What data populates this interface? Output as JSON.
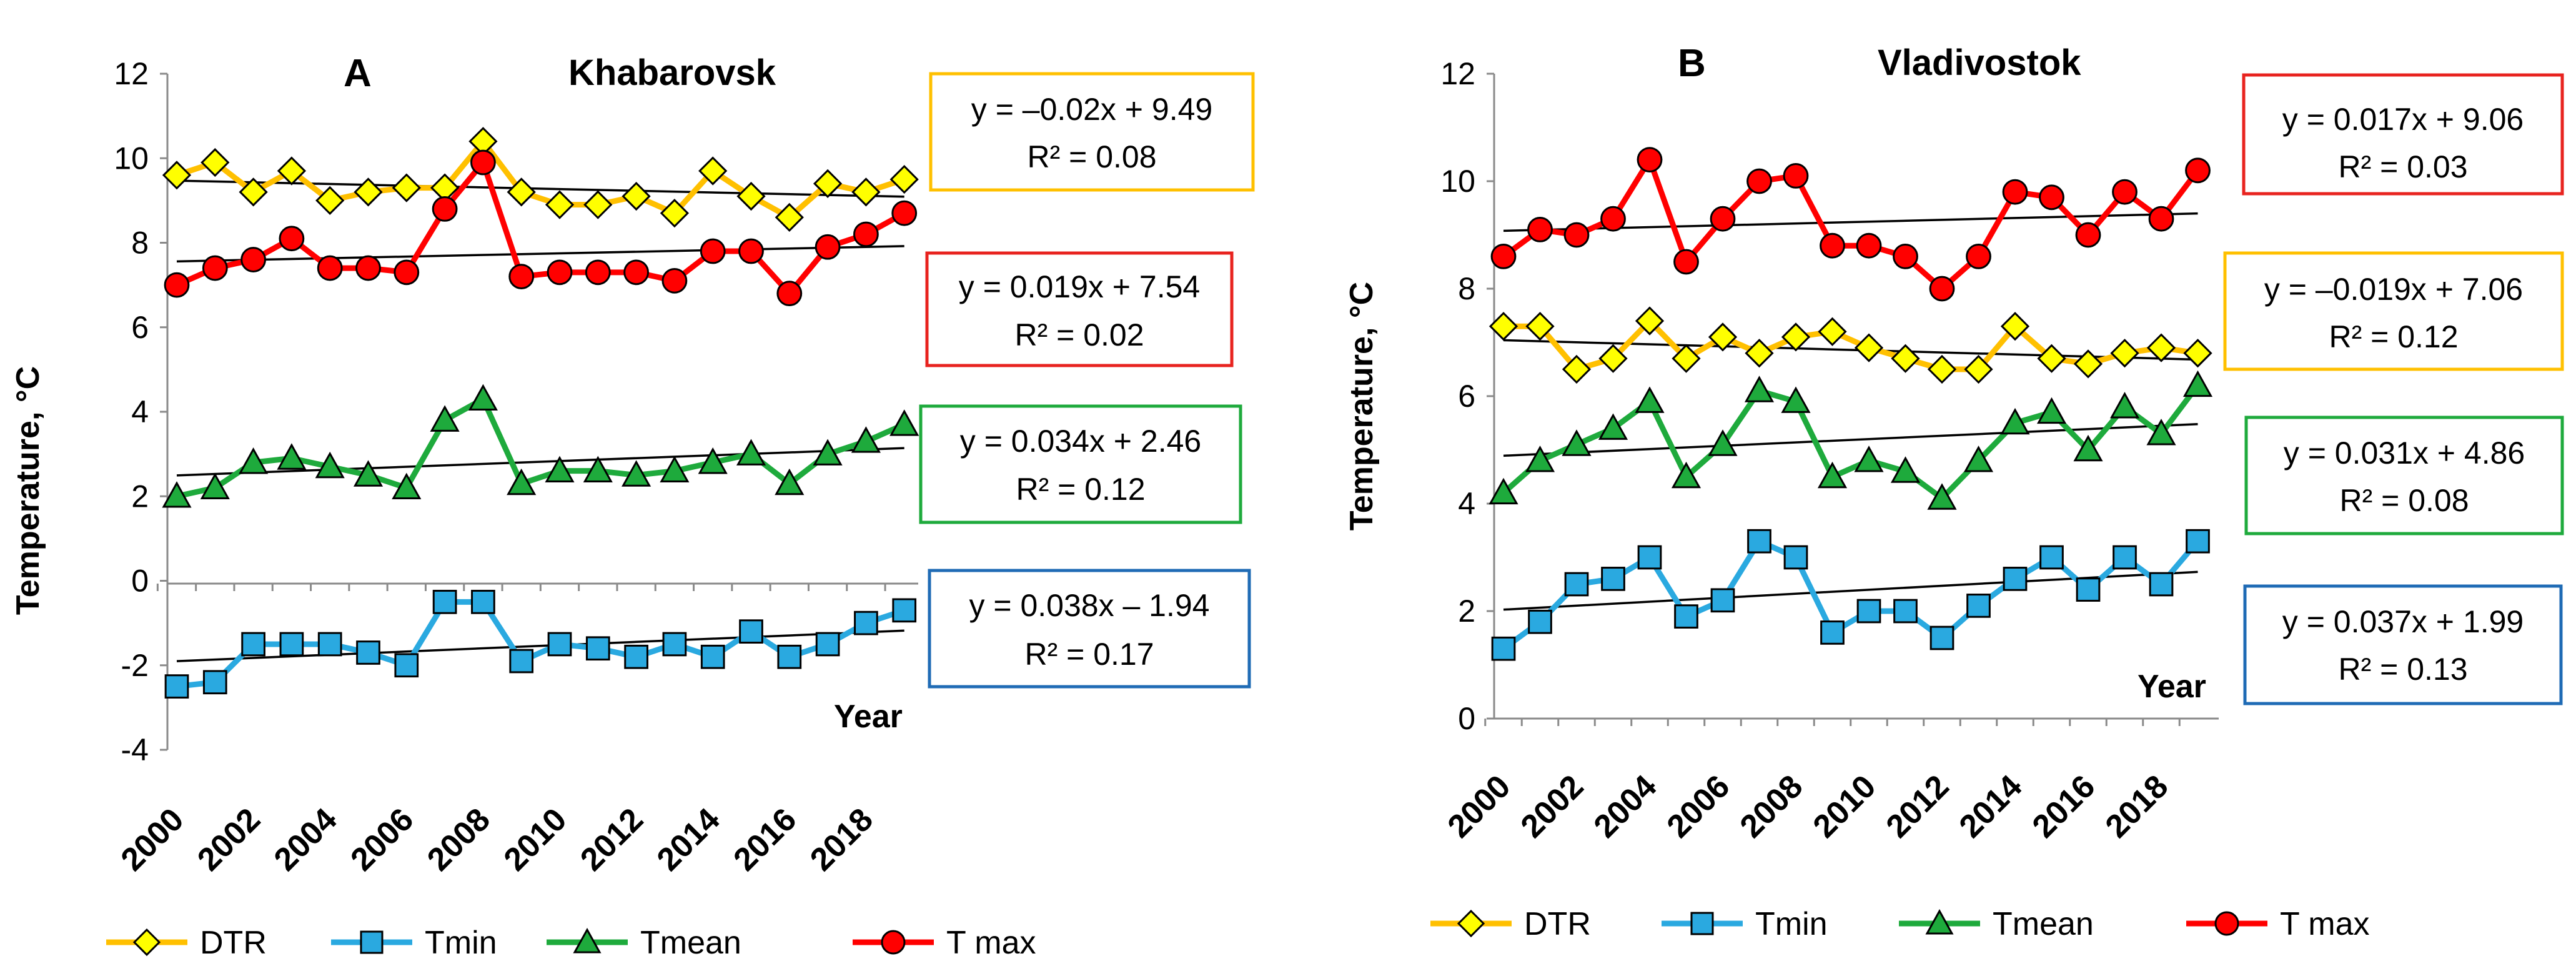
{
  "panels": [
    {
      "letter": "A",
      "city": "Khabarovsk",
      "ylabel": "Temperature, °C",
      "xlabel": "Year",
      "ylim": [
        -4,
        12
      ],
      "yticks": [
        "-4",
        "-2",
        "0",
        "2",
        "4",
        "6",
        "8",
        "10",
        "12"
      ],
      "xticks": [
        "2000",
        "2002",
        "2004",
        "2006",
        "2008",
        "2010",
        "2012",
        "2014",
        "2016",
        "2018"
      ],
      "equations": [
        {
          "series": "DTR",
          "eq": "y = –0.02x + 9.49",
          "r2": "R² = 0.08",
          "color": "#FFC000"
        },
        {
          "series": "T max",
          "eq": "y = 0.019x + 7.54",
          "r2": "R² = 0.02",
          "color": "#E8231F"
        },
        {
          "series": "Tmean",
          "eq": "y = 0.034x + 2.46",
          "r2": "R² = 0.12",
          "color": "#1EAA3C"
        },
        {
          "series": "Tmin",
          "eq": "y = 0.038x – 1.94",
          "r2": "R² = 0.17",
          "color": "#1F6BB5"
        }
      ]
    },
    {
      "letter": "B",
      "city": "Vladivostok",
      "ylabel": "Temperature, °C",
      "xlabel": "Year",
      "ylim": [
        0,
        12
      ],
      "yticks": [
        "0",
        "2",
        "4",
        "6",
        "8",
        "10",
        "12"
      ],
      "xticks": [
        "2000",
        "2002",
        "2004",
        "2006",
        "2008",
        "2010",
        "2012",
        "2014",
        "2016",
        "2018"
      ],
      "equations": [
        {
          "series": "T max",
          "eq": "y = 0.017x + 9.06",
          "r2": "R² = 0.03",
          "color": "#E8231F"
        },
        {
          "series": "DTR",
          "eq": "y = –0.019x + 7.06",
          "r2": "R² = 0.12",
          "color": "#FFC000"
        },
        {
          "series": "Tmean",
          "eq": "y = 0.031x + 4.86",
          "r2": "R² = 0.08",
          "color": "#1EAA3C"
        },
        {
          "series": "Tmin",
          "eq": "y = 0.037x + 1.99",
          "r2": "R² = 0.13",
          "color": "#1F6BB5"
        }
      ]
    }
  ],
  "legend": [
    {
      "label": "DTR",
      "marker": "diamond",
      "line_color": "#FFC000",
      "marker_fill": "#FFFF00"
    },
    {
      "label": "Tmin",
      "marker": "square",
      "line_color": "#2AA9E0",
      "marker_fill": "#2AA9E0"
    },
    {
      "label": "Tmean",
      "marker": "triangle",
      "line_color": "#1EAA3C",
      "marker_fill": "#1EAA3C"
    },
    {
      "label": "T max",
      "marker": "circle",
      "line_color": "#FF0000",
      "marker_fill": "#FF0000"
    }
  ],
  "chart_data": [
    {
      "type": "line",
      "title": "A Khabarovsk",
      "xlabel": "Year",
      "ylabel": "Temperature, °C",
      "ylim": [
        -4,
        12
      ],
      "x": [
        2000,
        2001,
        2002,
        2003,
        2004,
        2005,
        2006,
        2007,
        2008,
        2009,
        2010,
        2011,
        2012,
        2013,
        2014,
        2015,
        2016,
        2017,
        2018,
        2019
      ],
      "series": [
        {
          "name": "DTR",
          "values": [
            9.6,
            9.9,
            9.2,
            9.7,
            9.0,
            9.2,
            9.3,
            9.3,
            10.4,
            9.2,
            8.9,
            8.9,
            9.1,
            8.7,
            9.7,
            9.1,
            8.6,
            9.4,
            9.2,
            9.5
          ],
          "trend": {
            "slope": -0.02,
            "intercept": 9.49
          }
        },
        {
          "name": "Tmin",
          "values": [
            -2.5,
            -2.4,
            -1.5,
            -1.5,
            -1.5,
            -1.7,
            -2.0,
            -0.5,
            -0.5,
            -1.9,
            -1.5,
            -1.6,
            -1.8,
            -1.5,
            -1.8,
            -1.2,
            -1.8,
            -1.5,
            -1.0,
            -0.7
          ],
          "trend": {
            "slope": 0.038,
            "intercept": -1.94
          }
        },
        {
          "name": "Tmean",
          "values": [
            2.0,
            2.2,
            2.8,
            2.9,
            2.7,
            2.5,
            2.2,
            3.8,
            4.3,
            2.3,
            2.6,
            2.6,
            2.5,
            2.6,
            2.8,
            3.0,
            2.3,
            3.0,
            3.3,
            3.7
          ],
          "trend": {
            "slope": 0.034,
            "intercept": 2.46
          }
        },
        {
          "name": "T max",
          "values": [
            7.0,
            7.4,
            7.6,
            8.1,
            7.4,
            7.4,
            7.3,
            8.8,
            9.9,
            7.2,
            7.3,
            7.3,
            7.3,
            7.1,
            7.8,
            7.8,
            6.8,
            7.9,
            8.2,
            8.7
          ],
          "trend": {
            "slope": 0.019,
            "intercept": 7.54
          }
        }
      ]
    },
    {
      "type": "line",
      "title": "B Vladivostok",
      "xlabel": "Year",
      "ylabel": "Temperature, °C",
      "ylim": [
        0,
        12
      ],
      "x": [
        2000,
        2001,
        2002,
        2003,
        2004,
        2005,
        2006,
        2007,
        2008,
        2009,
        2010,
        2011,
        2012,
        2013,
        2014,
        2015,
        2016,
        2017,
        2018,
        2019
      ],
      "series": [
        {
          "name": "DTR",
          "values": [
            7.3,
            7.3,
            6.5,
            6.7,
            7.4,
            6.7,
            7.1,
            6.8,
            7.1,
            7.2,
            6.9,
            6.7,
            6.5,
            6.5,
            7.3,
            6.7,
            6.6,
            6.8,
            6.9,
            6.8
          ],
          "trend": {
            "slope": -0.019,
            "intercept": 7.06
          }
        },
        {
          "name": "Tmin",
          "values": [
            1.3,
            1.8,
            2.5,
            2.6,
            3.0,
            1.9,
            2.2,
            3.3,
            3.0,
            1.6,
            2.0,
            2.0,
            1.5,
            2.1,
            2.6,
            3.0,
            2.4,
            3.0,
            2.5,
            3.3
          ],
          "trend": {
            "slope": 0.037,
            "intercept": 1.99
          }
        },
        {
          "name": "Tmean",
          "values": [
            4.2,
            4.8,
            5.1,
            5.4,
            5.9,
            4.5,
            5.1,
            6.1,
            5.9,
            4.5,
            4.8,
            4.6,
            4.1,
            4.8,
            5.5,
            5.7,
            5.0,
            5.8,
            5.3,
            6.2
          ],
          "trend": {
            "slope": 0.031,
            "intercept": 4.86
          }
        },
        {
          "name": "T max",
          "values": [
            8.6,
            9.1,
            9.0,
            9.3,
            10.4,
            8.5,
            9.3,
            10.0,
            10.1,
            8.8,
            8.8,
            8.6,
            8.0,
            8.6,
            9.8,
            9.7,
            9.0,
            9.8,
            9.3,
            10.2
          ],
          "trend": {
            "slope": 0.017,
            "intercept": 9.06
          }
        }
      ]
    }
  ]
}
